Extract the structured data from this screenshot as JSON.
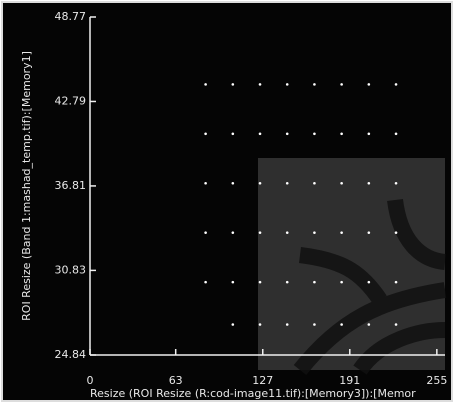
{
  "chart_data": {
    "type": "scatter",
    "xlabel": "Resize (ROI Resize (R:cod-image11.tif):[Memory3]):[Memor",
    "ylabel": "ROI Resize (Band 1:mashad_temp.tif):[Memory1]",
    "xlim": [
      0,
      261
    ],
    "ylim": [
      24.84,
      48.77
    ],
    "xticks": [
      0,
      63,
      127,
      191,
      255
    ],
    "yticks": [
      48.77,
      42.79,
      36.81,
      30.83,
      24.84
    ],
    "color": "#ffffff",
    "series": [
      {
        "name": null,
        "x": [
          85,
          105,
          125,
          145,
          165,
          185,
          205,
          225,
          85,
          105,
          125,
          145,
          165,
          185,
          205,
          225,
          85,
          105,
          125,
          145,
          165,
          185,
          205,
          225,
          85,
          105,
          125,
          145,
          165,
          185,
          205,
          225,
          85,
          105,
          125,
          145,
          165,
          185,
          205,
          225,
          105,
          125,
          145,
          165,
          185,
          205,
          225
        ],
        "values": [
          44,
          44,
          44,
          44,
          44,
          44,
          44,
          44,
          40.5,
          40.5,
          40.5,
          40.5,
          40.5,
          40.5,
          40.5,
          40.5,
          37,
          37,
          37,
          37,
          37,
          37,
          37,
          37,
          33.5,
          33.5,
          33.5,
          33.5,
          33.5,
          33.5,
          33.5,
          33.5,
          30,
          30,
          30,
          30,
          30,
          30,
          30,
          30,
          27,
          27,
          27,
          27,
          27,
          27,
          27
        ]
      }
    ]
  }
}
